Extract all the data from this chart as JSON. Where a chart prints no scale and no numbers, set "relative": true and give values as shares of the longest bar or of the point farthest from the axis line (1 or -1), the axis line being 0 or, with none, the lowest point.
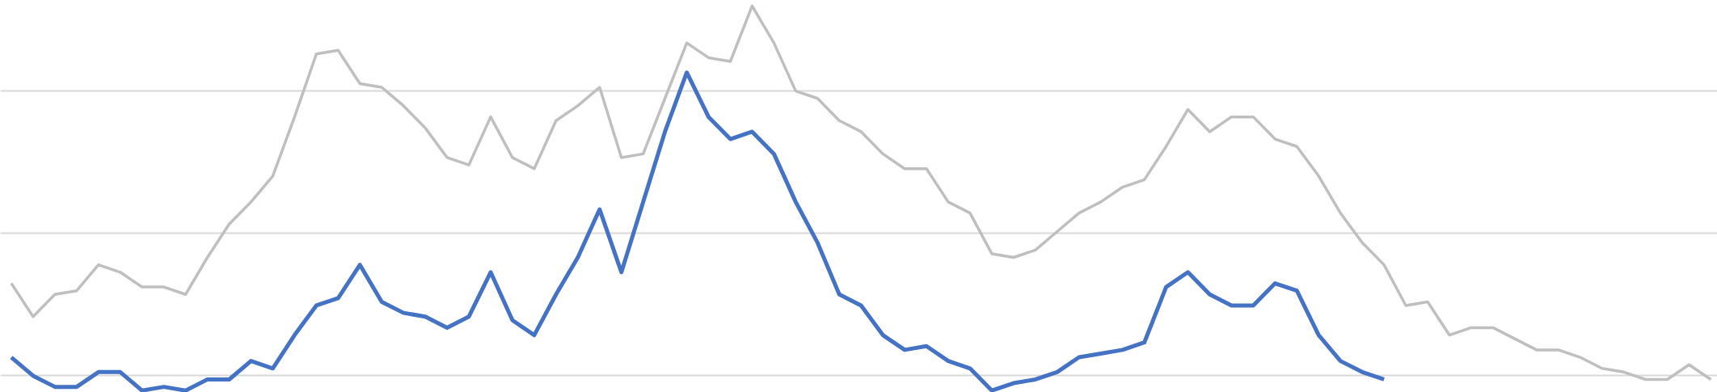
{
  "chart_data": {
    "type": "line",
    "relative": true,
    "grid": "y",
    "tick_labels": false,
    "line_style": "solid",
    "marker": "none",
    "categories": [
      null,
      null,
      null,
      null,
      null,
      null,
      null,
      null,
      null,
      null,
      null,
      null,
      null,
      null,
      null,
      null,
      null,
      null,
      null,
      null,
      null,
      null,
      null,
      null,
      null,
      null,
      null,
      null,
      null,
      null,
      null,
      null,
      null,
      null,
      null,
      null,
      null,
      null,
      null,
      null,
      null,
      null,
      null,
      null,
      null,
      null,
      null,
      null,
      null,
      null,
      null,
      null,
      null,
      null,
      null,
      null,
      null,
      null,
      null,
      null,
      null,
      null,
      null,
      null,
      null,
      null,
      null,
      null,
      null,
      null,
      null,
      null,
      null,
      null,
      null,
      null,
      null,
      null,
      null
    ],
    "series": [
      {
        "color": "#bfbfbf",
        "values": [
          0.25,
          0.16,
          0.22,
          0.23,
          0.3,
          0.28,
          0.24,
          0.24,
          0.22,
          0.32,
          0.41,
          0.47,
          0.54,
          0.7,
          0.87,
          0.88,
          0.79,
          0.78,
          0.73,
          0.67,
          0.59,
          0.57,
          0.7,
          0.59,
          0.56,
          0.69,
          0.73,
          0.78,
          0.59,
          0.6,
          0.75,
          0.9,
          0.86,
          0.85,
          1.0,
          0.9,
          0.77,
          0.75,
          0.69,
          0.66,
          0.6,
          0.56,
          0.56,
          0.47,
          0.44,
          0.33,
          0.32,
          0.34,
          0.39,
          0.44,
          0.47,
          0.51,
          0.53,
          0.62,
          0.72,
          0.66,
          0.7,
          0.7,
          0.64,
          0.62,
          0.54,
          0.44,
          0.36,
          0.3,
          0.19,
          0.2,
          0.11,
          0.13,
          0.13,
          0.1,
          0.07,
          0.07,
          0.05,
          0.02,
          0.01,
          -0.01,
          -0.01,
          0.03,
          -0.01
        ]
      },
      {
        "color": "#4472c4",
        "values": [
          0.05,
          0.0,
          -0.03,
          -0.03,
          0.01,
          0.01,
          -0.04,
          -0.03,
          -0.04,
          -0.01,
          -0.01,
          0.04,
          0.02,
          0.11,
          0.19,
          0.21,
          0.3,
          0.2,
          0.17,
          0.16,
          0.13,
          0.16,
          0.28,
          0.15,
          0.11,
          0.22,
          0.32,
          0.45,
          0.28,
          0.47,
          0.66,
          0.82,
          0.7,
          0.64,
          0.66,
          0.6,
          0.47,
          0.36,
          0.22,
          0.19,
          0.11,
          0.07,
          0.08,
          0.04,
          0.02,
          -0.04,
          -0.02,
          -0.01,
          0.01,
          0.05,
          0.06,
          0.07,
          0.09,
          0.24,
          0.28,
          0.22,
          0.19,
          0.19,
          0.25,
          0.23,
          0.11,
          0.04,
          0.01,
          -0.01,
          null,
          null,
          null,
          null,
          null,
          null,
          null,
          null,
          null,
          null,
          null,
          null,
          null,
          null,
          null
        ]
      }
    ]
  }
}
